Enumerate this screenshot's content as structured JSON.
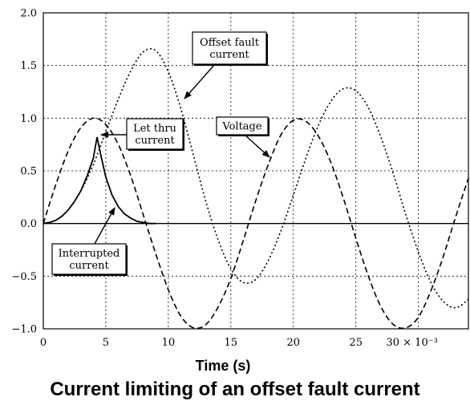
{
  "caption": "Current limiting of an offset fault current",
  "chart_data": {
    "type": "line",
    "title": "Current limiting of an offset fault current",
    "xlabel": "Time (s)",
    "ylabel": "",
    "xlim": [
      0,
      0.034
    ],
    "ylim": [
      -1.0,
      2.0
    ],
    "x_ticks": [
      0,
      5,
      10,
      15,
      20,
      25,
      30
    ],
    "x_tick_labels": [
      "0",
      "5",
      "10",
      "15",
      "20",
      "25",
      "30 × 10⁻³"
    ],
    "y_ticks": [
      -1.0,
      -0.5,
      0.0,
      0.5,
      1.0,
      1.5,
      2.0
    ],
    "y_tick_labels": [
      "−1.0",
      "−0.5",
      "0.0",
      "0.5",
      "1.0",
      "1.5",
      "2.0"
    ],
    "grid": true,
    "series": [
      {
        "name": "Offset fault current",
        "style": "dotted",
        "x": [
          0,
          0.001,
          0.002,
          0.003,
          0.004,
          0.005,
          0.006,
          0.007,
          0.008,
          0.009,
          0.01,
          0.011,
          0.012,
          0.013,
          0.014,
          0.015,
          0.016,
          0.017,
          0.018,
          0.019,
          0.02,
          0.021,
          0.022,
          0.023,
          0.024,
          0.025,
          0.026,
          0.027,
          0.028,
          0.029,
          0.03,
          0.031,
          0.032,
          0.033,
          0.034
        ],
        "values": [
          0.0,
          0.03,
          0.13,
          0.31,
          0.56,
          0.87,
          1.18,
          1.45,
          1.63,
          1.64,
          1.44,
          1.09,
          0.65,
          0.21,
          -0.16,
          -0.43,
          -0.56,
          -0.53,
          -0.35,
          -0.07,
          0.27,
          0.62,
          0.93,
          1.16,
          1.28,
          1.26,
          1.1,
          0.82,
          0.47,
          0.08,
          -0.27,
          -0.56,
          -0.74,
          -0.8,
          -0.72
        ]
      },
      {
        "name": "Voltage",
        "style": "dashed",
        "x": [
          0,
          0.001,
          0.002,
          0.003,
          0.004,
          0.005,
          0.006,
          0.007,
          0.008,
          0.009,
          0.01,
          0.011,
          0.012,
          0.013,
          0.014,
          0.015,
          0.016,
          0.017,
          0.018,
          0.019,
          0.02,
          0.021,
          0.022,
          0.023,
          0.024,
          0.025,
          0.026,
          0.027,
          0.028,
          0.029,
          0.03,
          0.031,
          0.032,
          0.033,
          0.034
        ],
        "values": [
          0.0,
          0.37,
          0.69,
          0.91,
          1.0,
          0.94,
          0.75,
          0.45,
          0.08,
          -0.29,
          -0.63,
          -0.88,
          -0.99,
          -0.96,
          -0.79,
          -0.52,
          -0.16,
          0.22,
          0.56,
          0.84,
          0.98,
          0.97,
          0.83,
          0.58,
          0.24,
          -0.14,
          -0.5,
          -0.79,
          -0.96,
          -0.99,
          -0.89,
          -0.64,
          -0.31,
          0.07,
          0.43
        ]
      },
      {
        "name": "Let thru current",
        "style": "solid",
        "x": [
          0,
          0.0005,
          0.001,
          0.0015,
          0.002,
          0.0025,
          0.003,
          0.0035,
          0.004,
          0.0043,
          0.0046,
          0.005,
          0.0055,
          0.006,
          0.0065,
          0.007,
          0.0075,
          0.008,
          0.0085,
          0.009
        ],
        "values": [
          0.0,
          0.01,
          0.03,
          0.07,
          0.13,
          0.21,
          0.31,
          0.45,
          0.62,
          0.82,
          0.65,
          0.44,
          0.27,
          0.16,
          0.09,
          0.05,
          0.02,
          0.01,
          0.0,
          0.0
        ]
      }
    ],
    "annotations": [
      {
        "text": [
          "Offset fault",
          "current"
        ],
        "points_to": "Offset fault current"
      },
      {
        "text": [
          "Let thru",
          "current"
        ],
        "points_to": "Let thru current peak"
      },
      {
        "text": [
          "Voltage"
        ],
        "points_to": "Voltage"
      },
      {
        "text": [
          "Interrupted",
          "current"
        ],
        "points_to": "Let thru current decay"
      }
    ]
  }
}
